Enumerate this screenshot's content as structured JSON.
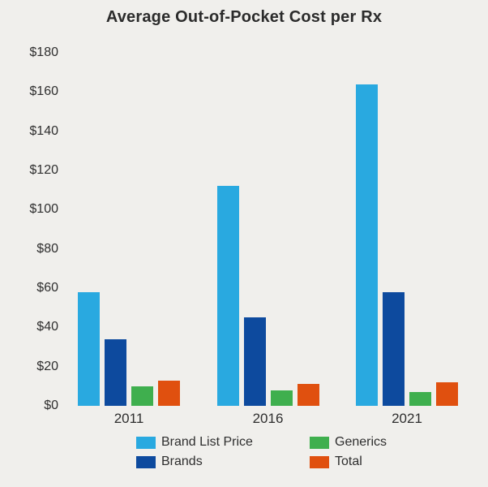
{
  "chart_data": {
    "type": "bar",
    "title": "Average Out-of-Pocket Cost per Rx",
    "categories": [
      "2011",
      "2016",
      "2021"
    ],
    "series": [
      {
        "name": "Brand List Price",
        "color": "#29A9E0",
        "values": [
          58,
          112,
          164
        ]
      },
      {
        "name": "Brands",
        "color": "#0D4A9E",
        "values": [
          34,
          45,
          58
        ]
      },
      {
        "name": "Generics",
        "color": "#3FAF4E",
        "values": [
          10,
          8,
          7
        ]
      },
      {
        "name": "Total",
        "color": "#E0500F",
        "values": [
          13,
          11,
          12
        ]
      }
    ],
    "xlabel": "",
    "ylabel": "",
    "ylim": [
      0,
      180
    ],
    "ytick_step": 20,
    "ytick_labels": [
      "$0",
      "$20",
      "$40",
      "$60",
      "$80",
      "$100",
      "$120",
      "$140",
      "$160",
      "$180"
    ],
    "grid": false,
    "legend_position": "bottom",
    "background_color": "#F0EFEC",
    "text_color": "#2B2B2B"
  }
}
